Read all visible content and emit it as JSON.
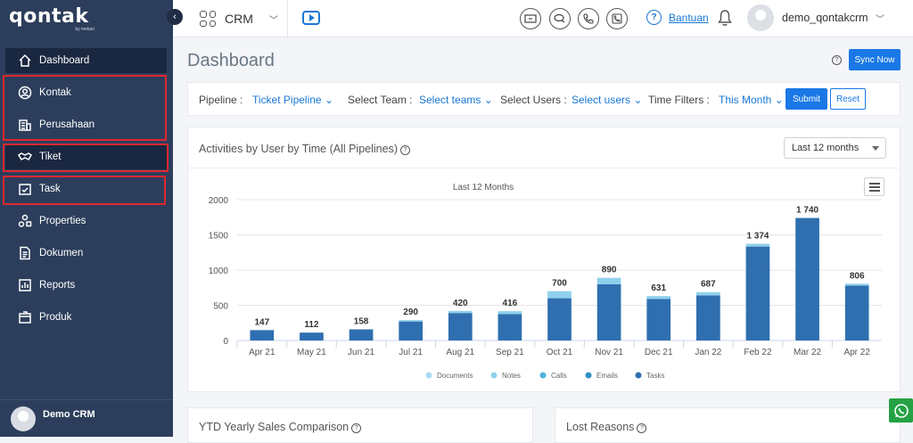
{
  "brand": {
    "name": "qontak",
    "sub": "by mekari"
  },
  "sidebar": {
    "items": [
      {
        "label": "Dashboard",
        "icon": "home-icon"
      },
      {
        "label": "Kontak",
        "icon": "user-circle-icon"
      },
      {
        "label": "Perusahaan",
        "icon": "building-icon"
      },
      {
        "label": "Tiket",
        "icon": "handshake-icon"
      },
      {
        "label": "Task",
        "icon": "checkbox-icon"
      },
      {
        "label": "Properties",
        "icon": "shapes-icon"
      },
      {
        "label": "Dokumen",
        "icon": "document-icon"
      },
      {
        "label": "Reports",
        "icon": "bar-chart-icon"
      },
      {
        "label": "Produk",
        "icon": "box-icon"
      }
    ],
    "footer_user": "Demo CRM",
    "highlight_color": "#e0282e"
  },
  "topbar": {
    "app_name": "CRM",
    "help_label": "Bantuan",
    "user_name": "demo_qontakcrm"
  },
  "page": {
    "title": "Dashboard",
    "sync_label": "Sync Now"
  },
  "filters": {
    "pipeline_label": "Pipeline :",
    "pipeline_value": "Ticket Pipeline",
    "team_label": "Select Team :",
    "team_value": "Select teams",
    "users_label": "Select Users :",
    "users_value": "Select users",
    "time_label": "Time Filters :",
    "time_value": "This Month",
    "submit_label": "Submit",
    "reset_label": "Reset"
  },
  "activities_card": {
    "title": "Activities by User by Time (All Pipelines)",
    "range_select": "Last 12 months"
  },
  "bottom_cards": {
    "ytd_title": "YTD Yearly Sales Comparison",
    "lost_title": "Lost Reasons"
  },
  "chart_data": {
    "type": "bar",
    "title": "Last 12 Months",
    "categories": [
      "Apr 21",
      "May 21",
      "Jun 21",
      "Jul 21",
      "Aug 21",
      "Sep 21",
      "Oct 21",
      "Nov 21",
      "Dec 21",
      "Jan 22",
      "Feb 22",
      "Mar 22",
      "Apr 22"
    ],
    "totals": [
      "147",
      "112",
      "158",
      "290",
      "420",
      "416",
      "700",
      "890",
      "631",
      "687",
      "1 374",
      "1 740",
      "806"
    ],
    "series": [
      {
        "name": "Documents",
        "color": "#a8dcf0",
        "values": [
          0,
          0,
          0,
          0,
          0,
          0,
          0,
          0,
          0,
          0,
          0,
          0,
          0
        ]
      },
      {
        "name": "Notes",
        "color": "#8fd0ec",
        "values": [
          0,
          0,
          0,
          20,
          30,
          40,
          100,
          90,
          40,
          47,
          40,
          0,
          26
        ]
      },
      {
        "name": "Calls",
        "color": "#4fb3dc",
        "values": [
          0,
          0,
          0,
          0,
          0,
          0,
          0,
          0,
          0,
          0,
          0,
          0,
          0
        ]
      },
      {
        "name": "Emails",
        "color": "#2f8fc4",
        "values": [
          0,
          0,
          0,
          0,
          0,
          0,
          0,
          0,
          0,
          0,
          0,
          0,
          0
        ]
      },
      {
        "name": "Tasks",
        "color": "#2f6fb0",
        "values": [
          147,
          112,
          158,
          270,
          390,
          376,
          600,
          800,
          591,
          640,
          1334,
          1740,
          780
        ]
      }
    ],
    "yticks": [
      0,
      500,
      1000,
      1500,
      2000
    ],
    "ylim": [
      0,
      2000
    ],
    "grid": true,
    "legend_position": "bottom"
  }
}
